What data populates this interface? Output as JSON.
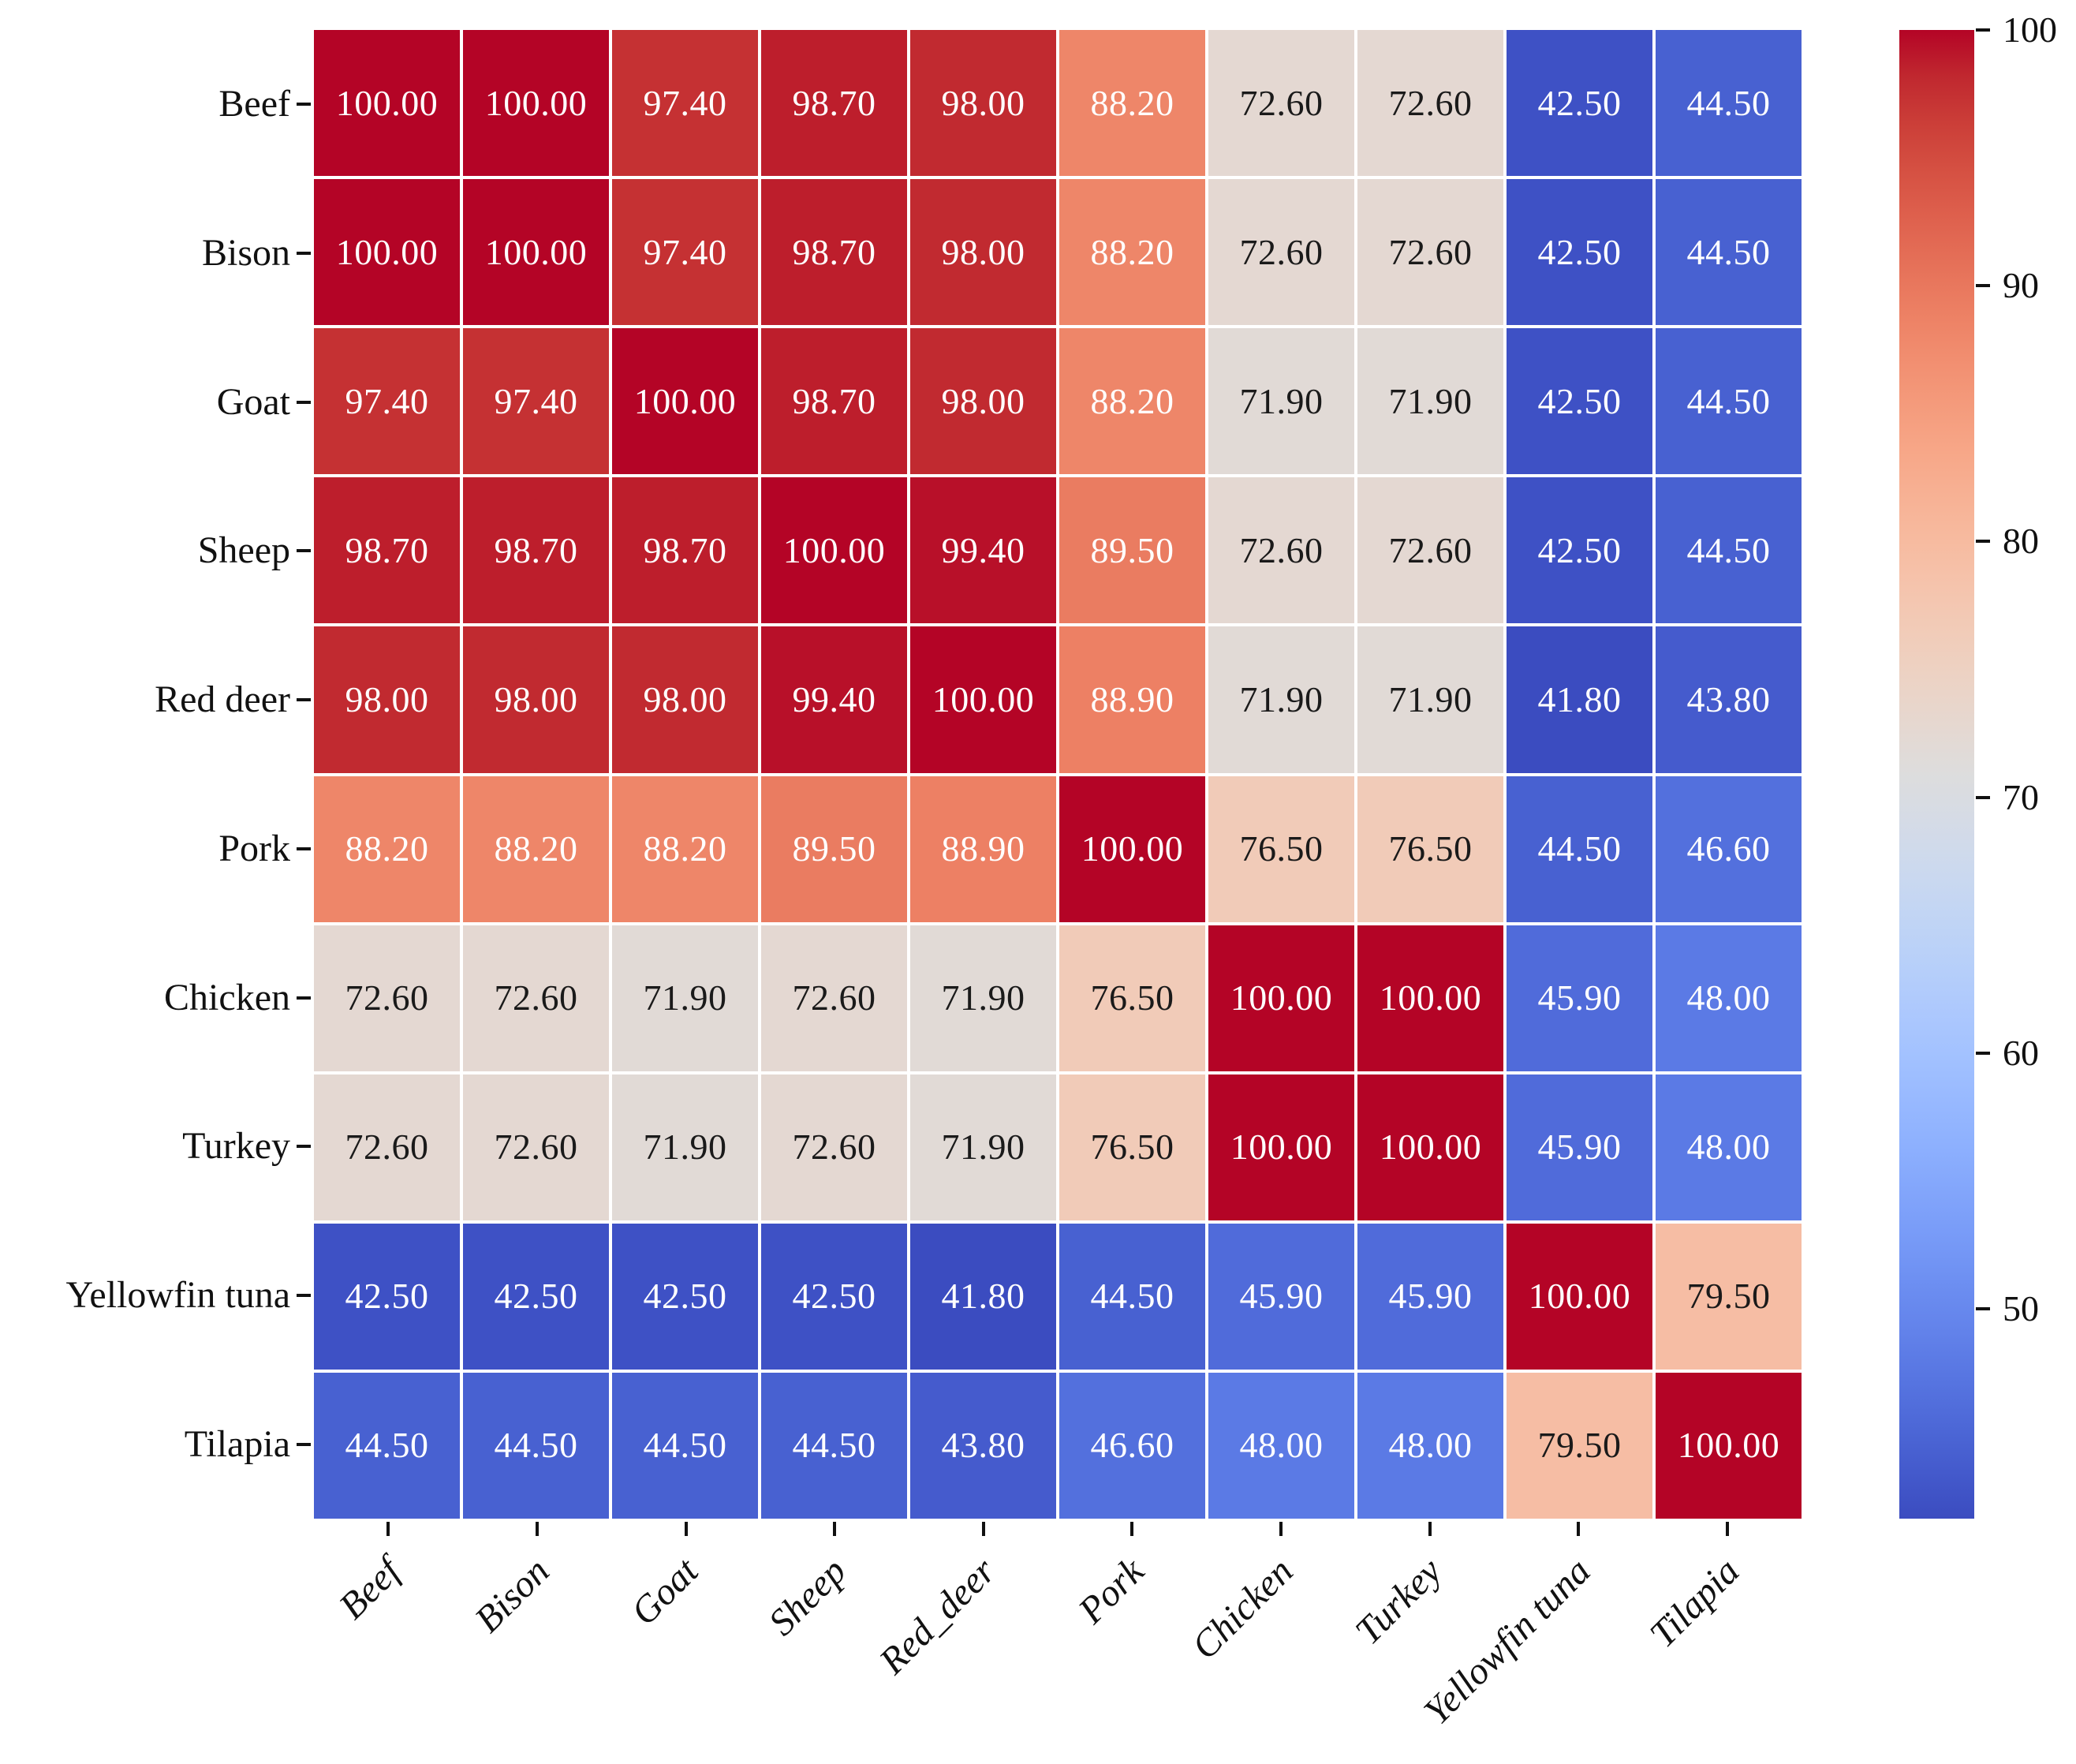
{
  "chart_data": {
    "type": "heatmap",
    "title": "",
    "xlabel": "",
    "ylabel": "",
    "rows": [
      "Beef",
      "Bison",
      "Goat",
      "Sheep",
      "Red deer",
      "Pork",
      "Chicken",
      "Turkey",
      "Yellowfin tuna",
      "Tilapia"
    ],
    "columns": [
      "Beef",
      "Bison",
      "Goat",
      "Sheep",
      "Red_deer",
      "Pork",
      "Chicken",
      "Turkey",
      "Yellowfin tuna",
      "Tilapia"
    ],
    "values": [
      [
        100.0,
        100.0,
        97.4,
        98.7,
        98.0,
        88.2,
        72.6,
        72.6,
        42.5,
        44.5
      ],
      [
        100.0,
        100.0,
        97.4,
        98.7,
        98.0,
        88.2,
        72.6,
        72.6,
        42.5,
        44.5
      ],
      [
        97.4,
        97.4,
        100.0,
        98.7,
        98.0,
        88.2,
        71.9,
        71.9,
        42.5,
        44.5
      ],
      [
        98.7,
        98.7,
        98.7,
        100.0,
        99.4,
        89.5,
        72.6,
        72.6,
        42.5,
        44.5
      ],
      [
        98.0,
        98.0,
        98.0,
        99.4,
        100.0,
        88.9,
        71.9,
        71.9,
        41.8,
        43.8
      ],
      [
        88.2,
        88.2,
        88.2,
        89.5,
        88.9,
        100.0,
        76.5,
        76.5,
        44.5,
        46.6
      ],
      [
        72.6,
        72.6,
        71.9,
        72.6,
        71.9,
        76.5,
        100.0,
        100.0,
        45.9,
        48.0
      ],
      [
        72.6,
        72.6,
        71.9,
        72.6,
        71.9,
        76.5,
        100.0,
        100.0,
        45.9,
        48.0
      ],
      [
        42.5,
        42.5,
        42.5,
        42.5,
        41.8,
        44.5,
        45.9,
        45.9,
        100.0,
        79.5
      ],
      [
        44.5,
        44.5,
        44.5,
        44.5,
        43.8,
        46.6,
        48.0,
        48.0,
        79.5,
        100.0
      ]
    ],
    "annotation_decimals": 2,
    "vmin": 41.8,
    "vmax": 100,
    "grid_on": false,
    "colorbar": {
      "ticks": [
        100,
        90,
        80,
        70,
        60,
        50
      ],
      "position": "right"
    },
    "colormap": {
      "name": "coolwarm",
      "stops": [
        "#3b4cc0",
        "#445acc",
        "#4d68d7",
        "#5775e1",
        "#6282ea",
        "#6c8ef1",
        "#779af7",
        "#82a5fb",
        "#8db0fe",
        "#98b9ff",
        "#a3c2ff",
        "#aec9fd",
        "#b8d0f9",
        "#c2d5f4",
        "#ccd9ee",
        "#d5dbe6",
        "#dddddd",
        "#e5d8d1",
        "#ecd3c5",
        "#f1ccb9",
        "#f5c4ad",
        "#f7bba0",
        "#f7b194",
        "#f7a687",
        "#f49a7b",
        "#f18d6f",
        "#ec7f63",
        "#e57058",
        "#de604d",
        "#d55042",
        "#cb3e38",
        "#c0282f",
        "#b40426"
      ]
    },
    "colors": {
      "annotation_light": "#ffffff",
      "annotation_dark": "#1a1a1a",
      "gridline": "#ffffff",
      "axis_text": "#111111",
      "background": "#ffffff",
      "luminance_threshold": 0.408
    }
  }
}
